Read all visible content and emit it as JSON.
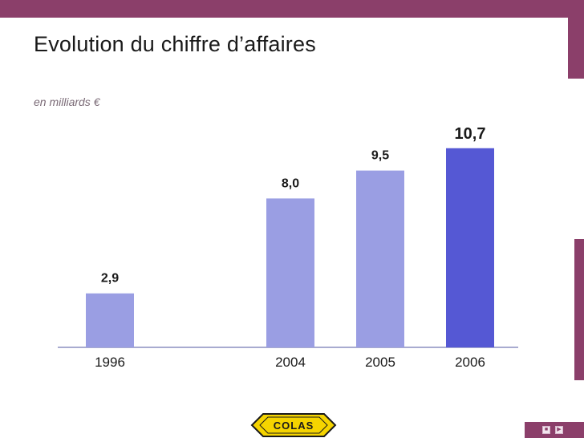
{
  "header": {
    "title": "Evolution du chiffre d’affaires",
    "subtitle": "en milliards €"
  },
  "logo": {
    "text": "COLAS"
  },
  "nav": {
    "prev_icon": "square-icon",
    "next_icon": "play-icon"
  },
  "colors": {
    "brand": "#8b3f6a",
    "bar": "#9a9ee3",
    "bar_highlight": "#5558d4",
    "axis": "#8b8fc0",
    "logo_yellow": "#f5d400"
  },
  "chart_data": {
    "type": "bar",
    "title": "Evolution du chiffre d’affaires",
    "subtitle": "en milliards €",
    "categories": [
      "1996",
      "2004",
      "2005",
      "2006"
    ],
    "values": [
      2.9,
      8.0,
      9.5,
      10.7
    ],
    "data_labels": [
      "2,9",
      "8,0",
      "9,5",
      "10,7"
    ],
    "highlight": "2006",
    "ylim": [
      0,
      12.5
    ],
    "grid": false,
    "legend": "none"
  }
}
